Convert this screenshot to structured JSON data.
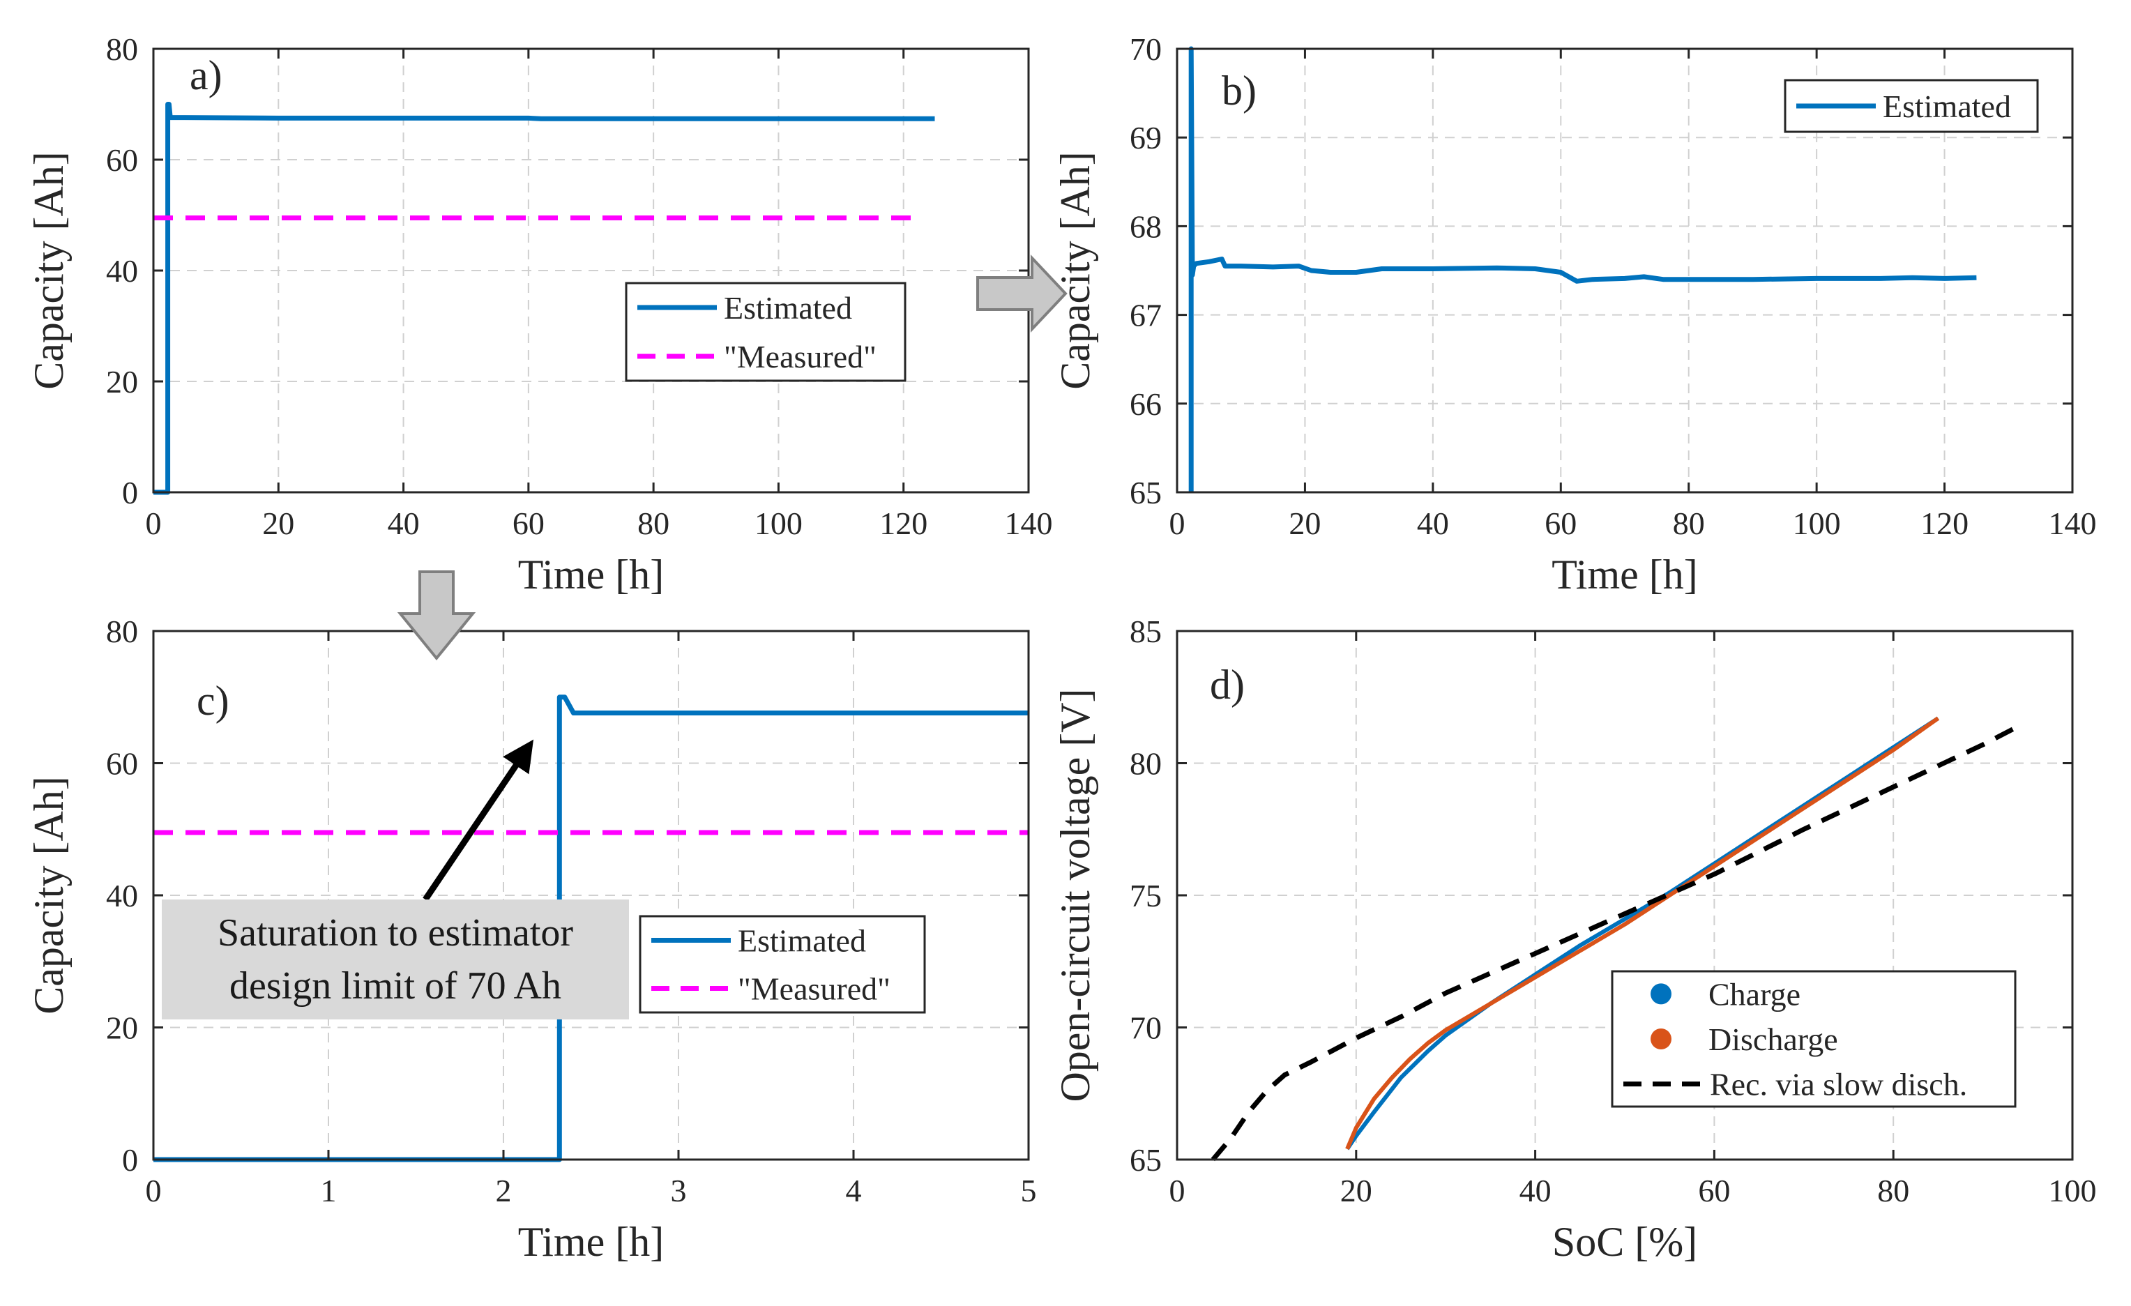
{
  "colors": {
    "estimated": "#0072BD",
    "measured": "#FF00FF",
    "charge": "#0072BD",
    "discharge": "#D95319",
    "rec": "#000000",
    "grid": "#d0d0d0",
    "arrow_fill": "#c8c8c8",
    "annotation_bg": "#d9d9d9"
  },
  "annotation": {
    "line1": "Saturation to estimator",
    "line2": "design limit of 70 Ah"
  },
  "chart_data": [
    {
      "id": "a",
      "type": "line",
      "panel_label": "a)",
      "xlabel": "Time [h]",
      "ylabel": "Capacity [Ah]",
      "xlim": [
        0,
        140
      ],
      "ylim": [
        0,
        80
      ],
      "xticks": [
        0,
        20,
        40,
        60,
        80,
        100,
        120,
        140
      ],
      "yticks": [
        0,
        20,
        40,
        60,
        80
      ],
      "grid": true,
      "legend": [
        "Estimated",
        "\"Measured\""
      ],
      "legend_position": "center-right",
      "series": [
        {
          "name": "Estimated",
          "style": "solid",
          "color_key": "estimated",
          "x": [
            0,
            2.3,
            2.3,
            2.5,
            2.7,
            5,
            20,
            40,
            60,
            62,
            80,
            100,
            125
          ],
          "y": [
            0,
            0,
            70,
            70,
            67.6,
            67.6,
            67.5,
            67.5,
            67.5,
            67.4,
            67.4,
            67.4,
            67.4
          ]
        },
        {
          "name": "\"Measured\"",
          "style": "dashed",
          "color_key": "measured",
          "x": [
            0,
            123
          ],
          "y": [
            49.5,
            49.5
          ]
        }
      ]
    },
    {
      "id": "b",
      "type": "line",
      "panel_label": "b)",
      "xlabel": "Time [h]",
      "ylabel": "Capacity [Ah]",
      "xlim": [
        0,
        140
      ],
      "ylim": [
        65,
        70
      ],
      "xticks": [
        0,
        20,
        40,
        60,
        80,
        100,
        120,
        140
      ],
      "yticks": [
        65,
        66,
        67,
        68,
        69,
        70
      ],
      "grid": true,
      "legend": [
        "Estimated"
      ],
      "legend_position": "top-right",
      "series": [
        {
          "name": "Estimated",
          "style": "solid",
          "color_key": "estimated",
          "x": [
            2.2,
            2.2,
            2.4,
            2.6,
            3,
            5,
            7,
            7.5,
            10,
            15,
            19,
            21,
            24,
            28,
            32,
            40,
            50,
            56,
            60,
            61.5,
            62.5,
            65,
            70,
            73,
            76,
            80,
            90,
            100,
            110,
            115,
            120,
            125
          ],
          "y": [
            65,
            70,
            67.45,
            67.55,
            67.58,
            67.6,
            67.63,
            67.55,
            67.55,
            67.54,
            67.55,
            67.5,
            67.48,
            67.48,
            67.52,
            67.52,
            67.53,
            67.52,
            67.48,
            67.42,
            67.38,
            67.4,
            67.41,
            67.43,
            67.4,
            67.4,
            67.4,
            67.41,
            67.41,
            67.42,
            67.41,
            67.42
          ]
        }
      ]
    },
    {
      "id": "c",
      "type": "line",
      "panel_label": "c)",
      "xlabel": "Time [h]",
      "ylabel": "Capacity [Ah]",
      "xlim": [
        0,
        5
      ],
      "ylim": [
        0,
        80
      ],
      "xticks": [
        0,
        1,
        2,
        3,
        4,
        5
      ],
      "yticks": [
        0,
        20,
        40,
        60,
        80
      ],
      "grid": true,
      "legend": [
        "Estimated",
        "\"Measured\""
      ],
      "legend_position": "center-right",
      "series": [
        {
          "name": "Estimated",
          "style": "solid",
          "color_key": "estimated",
          "x": [
            0,
            2.32,
            2.32,
            2.35,
            2.4,
            2.45,
            5
          ],
          "y": [
            0,
            0,
            70,
            70,
            67.6,
            67.6,
            67.6
          ]
        },
        {
          "name": "\"Measured\"",
          "style": "dashed",
          "color_key": "measured",
          "x": [
            0,
            5
          ],
          "y": [
            49.5,
            49.5
          ]
        }
      ]
    },
    {
      "id": "d",
      "type": "line",
      "panel_label": "d)",
      "xlabel": "SoC [%]",
      "ylabel": "Open-circuit voltage [V]",
      "xlim": [
        0,
        100
      ],
      "ylim": [
        65,
        85
      ],
      "xticks": [
        0,
        20,
        40,
        60,
        80,
        100
      ],
      "yticks": [
        65,
        70,
        75,
        80,
        85
      ],
      "grid": true,
      "legend": [
        "Charge",
        "Discharge",
        "Rec. via slow disch."
      ],
      "legend_position": "bottom-right",
      "series": [
        {
          "name": "Charge",
          "style": "solid",
          "color_key": "charge",
          "x": [
            19,
            20,
            22,
            25,
            28,
            30,
            35,
            40,
            45,
            50,
            55,
            60,
            65,
            70,
            75,
            80,
            85
          ],
          "y": [
            65.4,
            65.9,
            66.8,
            68.1,
            69.1,
            69.7,
            70.9,
            72.0,
            73.1,
            74.1,
            75.1,
            76.2,
            77.3,
            78.4,
            79.5,
            80.6,
            81.7
          ]
        },
        {
          "name": "Discharge",
          "style": "solid",
          "color_key": "discharge",
          "x": [
            19,
            20,
            22,
            24,
            26,
            28,
            30,
            35,
            40,
            45,
            50,
            55,
            60,
            65,
            70,
            75,
            80,
            85
          ],
          "y": [
            65.4,
            66.2,
            67.3,
            68.1,
            68.8,
            69.4,
            69.9,
            70.9,
            71.9,
            72.9,
            73.9,
            75.0,
            76.1,
            77.2,
            78.3,
            79.4,
            80.5,
            81.7
          ]
        },
        {
          "name": "Rec. via slow disch.",
          "style": "dashed",
          "color_key": "rec",
          "x": [
            4,
            6,
            8,
            10,
            12,
            15,
            20,
            25,
            30,
            40,
            50,
            60,
            70,
            80,
            90,
            94
          ],
          "y": [
            65.0,
            65.8,
            66.8,
            67.6,
            68.2,
            68.7,
            69.6,
            70.4,
            71.3,
            72.8,
            74.3,
            75.8,
            77.5,
            79.1,
            80.7,
            81.4
          ]
        }
      ]
    }
  ]
}
